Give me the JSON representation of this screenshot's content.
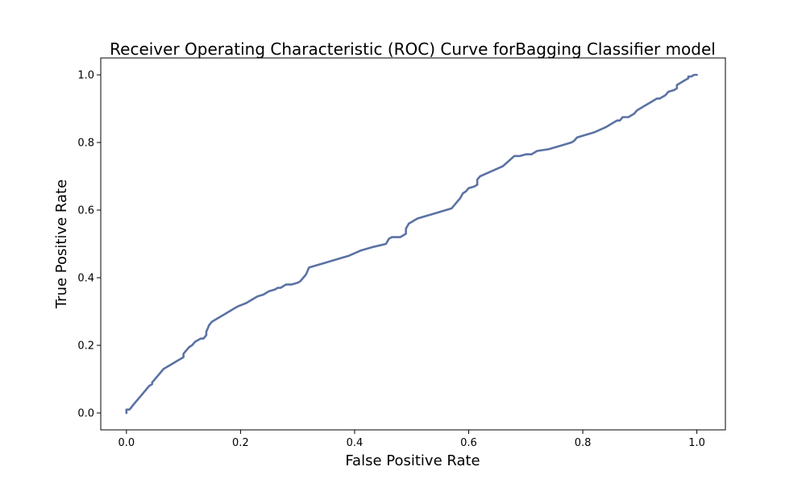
{
  "chart_data": {
    "type": "line",
    "title": "Receiver Operating Characteristic (ROC) Curve forBagging Classifier  model",
    "xlabel": "False Positive Rate",
    "ylabel": "True Positive Rate",
    "xlim": [
      -0.045,
      1.05
    ],
    "ylim": [
      -0.05,
      1.05
    ],
    "xticks": [
      "0.0",
      "0.2",
      "0.4",
      "0.6",
      "0.8",
      "1.0"
    ],
    "yticks": [
      "0.0",
      "0.2",
      "0.4",
      "0.6",
      "0.8",
      "1.0"
    ],
    "grid": false,
    "series": [
      {
        "color": "#5b72a3",
        "x": [
          0.0,
          0.0,
          0.005,
          0.008,
          0.01,
          0.015,
          0.02,
          0.025,
          0.03,
          0.035,
          0.04,
          0.045,
          0.045,
          0.05,
          0.055,
          0.06,
          0.065,
          0.07,
          0.08,
          0.09,
          0.1,
          0.1,
          0.105,
          0.11,
          0.115,
          0.12,
          0.13,
          0.135,
          0.14,
          0.14,
          0.145,
          0.15,
          0.16,
          0.17,
          0.18,
          0.19,
          0.195,
          0.21,
          0.22,
          0.23,
          0.24,
          0.245,
          0.25,
          0.26,
          0.265,
          0.27,
          0.28,
          0.29,
          0.3,
          0.305,
          0.31,
          0.315,
          0.32,
          0.33,
          0.35,
          0.38,
          0.39,
          0.41,
          0.43,
          0.455,
          0.46,
          0.465,
          0.48,
          0.49,
          0.49,
          0.495,
          0.5,
          0.505,
          0.51,
          0.52,
          0.54,
          0.57,
          0.575,
          0.58,
          0.585,
          0.59,
          0.595,
          0.6,
          0.61,
          0.615,
          0.615,
          0.62,
          0.64,
          0.66,
          0.67,
          0.68,
          0.69,
          0.7,
          0.71,
          0.715,
          0.72,
          0.74,
          0.76,
          0.78,
          0.785,
          0.79,
          0.82,
          0.84,
          0.85,
          0.86,
          0.865,
          0.87,
          0.875,
          0.88,
          0.885,
          0.89,
          0.895,
          0.9,
          0.905,
          0.91,
          0.92,
          0.93,
          0.935,
          0.94,
          0.945,
          0.95,
          0.96,
          0.965,
          0.965,
          0.97,
          0.975,
          0.98,
          0.985,
          0.985,
          0.99,
          0.995,
          1.0
        ],
        "y": [
          0.0,
          0.01,
          0.01,
          0.015,
          0.02,
          0.03,
          0.04,
          0.05,
          0.06,
          0.07,
          0.08,
          0.085,
          0.09,
          0.1,
          0.11,
          0.12,
          0.13,
          0.135,
          0.145,
          0.155,
          0.165,
          0.175,
          0.185,
          0.195,
          0.2,
          0.21,
          0.22,
          0.22,
          0.23,
          0.24,
          0.26,
          0.27,
          0.28,
          0.29,
          0.3,
          0.31,
          0.315,
          0.325,
          0.335,
          0.345,
          0.35,
          0.355,
          0.36,
          0.365,
          0.37,
          0.37,
          0.38,
          0.38,
          0.385,
          0.39,
          0.4,
          0.41,
          0.43,
          0.435,
          0.445,
          0.46,
          0.465,
          0.48,
          0.49,
          0.5,
          0.515,
          0.52,
          0.52,
          0.53,
          0.545,
          0.56,
          0.565,
          0.57,
          0.575,
          0.58,
          0.59,
          0.605,
          0.615,
          0.625,
          0.635,
          0.65,
          0.655,
          0.665,
          0.67,
          0.675,
          0.69,
          0.7,
          0.715,
          0.73,
          0.745,
          0.76,
          0.76,
          0.765,
          0.765,
          0.77,
          0.775,
          0.78,
          0.79,
          0.8,
          0.805,
          0.815,
          0.83,
          0.845,
          0.855,
          0.865,
          0.865,
          0.875,
          0.875,
          0.875,
          0.88,
          0.885,
          0.895,
          0.9,
          0.905,
          0.91,
          0.92,
          0.93,
          0.93,
          0.935,
          0.94,
          0.95,
          0.955,
          0.96,
          0.97,
          0.975,
          0.98,
          0.985,
          0.99,
          0.995,
          0.995,
          1.0,
          1.0
        ]
      }
    ]
  }
}
